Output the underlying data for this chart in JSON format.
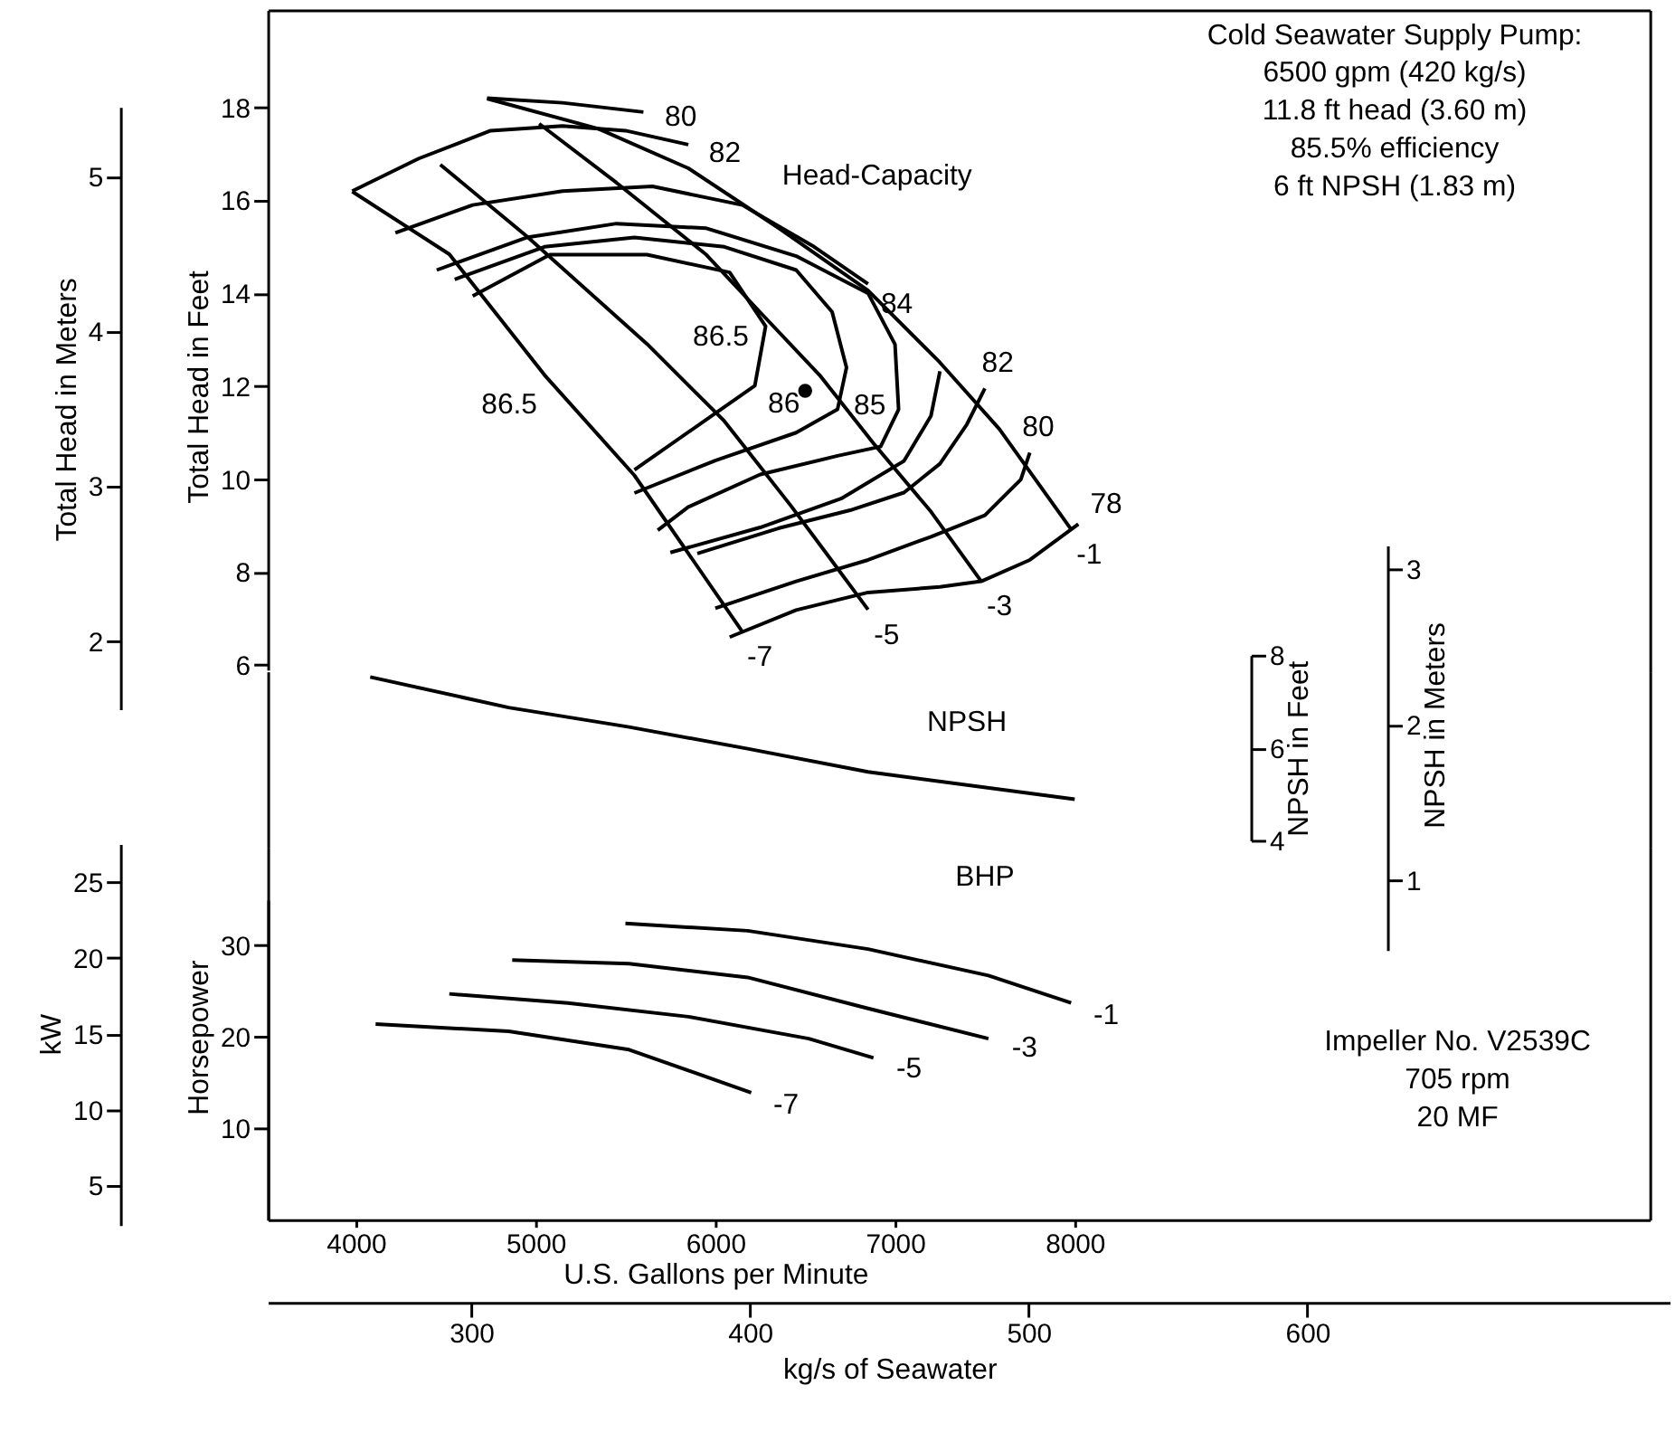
{
  "chart_data": [
    {
      "type": "line",
      "ylabel": "Total Head in Feet",
      "y2label": "Total Head in Meters",
      "xlim": [
        3510,
        11200
      ],
      "tick_labels": "y",
      "ylim": [
        5.9,
        20.1
      ],
      "yticks": [
        6,
        8,
        10,
        12,
        14,
        16,
        18
      ],
      "y2lim": [
        1.56,
        5.45
      ],
      "y2ticks": [
        2,
        3,
        4,
        5
      ],
      "line_style": "solid",
      "series": [
        {
          "color": "#000000",
          "x": [
            4730,
            5350,
            5850,
            6350,
            6850,
            7250,
            7580,
            7980
          ],
          "values": [
            18.19,
            17.54,
            16.69,
            15.41,
            14.06,
            12.51,
            11.08,
            8.92
          ]
        },
        {
          "color": "#000000",
          "x": [
            5020,
            5450,
            5950,
            6250,
            6580,
            6880,
            7200,
            7480
          ],
          "values": [
            17.65,
            16.38,
            14.83,
            13.59,
            12.24,
            10.77,
            9.3,
            7.8
          ]
        },
        {
          "color": "#000000",
          "x": [
            4470,
            4950,
            5620,
            6050,
            6420,
            6620,
            6850
          ],
          "values": [
            16.77,
            15.23,
            12.91,
            11.25,
            9.43,
            8.39,
            7.19
          ]
        },
        {
          "color": "#000000",
          "x": [
            3980,
            4520,
            5050,
            5550,
            6150
          ],
          "values": [
            16.19,
            14.84,
            12.24,
            10.08,
            6.72
          ]
        },
        {
          "color": "#000000",
          "x": [
            4730,
            5150,
            5600
          ],
          "values": [
            18.2,
            18.1,
            17.9
          ]
        },
        {
          "color": "#000000",
          "x": [
            3980,
            4350,
            4750,
            5150,
            5500,
            5850
          ],
          "values": [
            16.2,
            16.9,
            17.5,
            17.6,
            17.5,
            17.2
          ]
        },
        {
          "color": "#000000",
          "x": [
            4220,
            4650,
            5150,
            5650,
            6150,
            6550,
            6850
          ],
          "values": [
            15.3,
            15.9,
            16.2,
            16.3,
            15.9,
            15.0,
            14.2
          ]
        },
        {
          "color": "#000000",
          "x": [
            4450,
            4950,
            5450,
            5950,
            6450,
            6850,
            7000,
            7020,
            6920,
            6680,
            6250,
            5850,
            5680
          ],
          "values": [
            14.5,
            15.2,
            15.5,
            15.4,
            14.8,
            14.0,
            12.9,
            11.5,
            10.7,
            10.5,
            10.1,
            9.4,
            8.9
          ]
        },
        {
          "color": "#000000",
          "x": [
            4550,
            5050,
            5550,
            6050,
            6450,
            6650,
            6730,
            6680,
            6450,
            6000,
            5550
          ],
          "values": [
            14.3,
            15.0,
            15.2,
            15.0,
            14.5,
            13.6,
            12.4,
            11.5,
            11.0,
            10.4,
            9.7
          ]
        },
        {
          "color": "#000000",
          "x": [
            4650,
            5080,
            5620,
            6080,
            6280,
            6220,
            6020,
            5550
          ],
          "values": [
            13.94,
            14.83,
            14.83,
            14.45,
            13.29,
            12.01,
            11.47,
            10.2
          ]
        },
        {
          "color": "#000000",
          "x": [
            5750,
            6250,
            6700,
            7050,
            7200,
            7250
          ],
          "values": [
            8.42,
            8.96,
            9.58,
            10.39,
            11.36,
            12.32
          ]
        },
        {
          "color": "#000000",
          "x": [
            5900,
            6350,
            6750,
            7050,
            7250,
            7400,
            7500
          ],
          "values": [
            8.4,
            8.94,
            9.33,
            9.71,
            10.33,
            11.18,
            11.95
          ]
        },
        {
          "color": "#000000",
          "x": [
            6000,
            6450,
            6850,
            7200,
            7500,
            7700,
            7750
          ],
          "values": [
            7.22,
            7.8,
            8.26,
            8.76,
            9.22,
            9.99,
            10.57
          ]
        },
        {
          "color": "#000000",
          "x": [
            6080,
            6450,
            6850,
            7250,
            7480,
            7750,
            8020
          ],
          "values": [
            6.6,
            7.18,
            7.56,
            7.68,
            7.8,
            8.26,
            9.03
          ]
        },
        {
          "type": "scatter",
          "color": "#000000",
          "marker": "circle",
          "x": [
            6500
          ],
          "values": [
            11.9
          ]
        }
      ],
      "annotations": [
        "Head-Capacity",
        "Cold Seawater Supply Pump:\n6500 gpm (420 kg/s)\n11.8 ft head (3.60 m)\n85.5% efficiency\n6 ft NPSH (1.83 m)",
        {
          "text": "80",
          "x": 5600,
          "y": 17.9
        },
        {
          "text": "82",
          "x": 5850,
          "y": 17.2
        },
        {
          "text": "84",
          "x": 6850,
          "y": 14.2
        },
        {
          "text": "86.5",
          "x": 6280,
          "y": 13.29
        },
        {
          "text": "86.5",
          "x": 5050,
          "y": 12.24
        },
        {
          "text": "86",
          "x": 6450,
          "y": 11.0
        },
        {
          "text": "85",
          "x": 7020,
          "y": 11.5
        },
        {
          "text": "82",
          "x": 7500,
          "y": 11.95
        },
        {
          "text": "80",
          "x": 7750,
          "y": 10.57
        },
        {
          "text": "78",
          "x": 8020,
          "y": 9.03
        },
        {
          "text": "-1",
          "x": 7980,
          "y": 8.92
        },
        {
          "text": "-3",
          "x": 7480,
          "y": 7.8
        },
        {
          "text": "-5",
          "x": 6850,
          "y": 7.19
        },
        {
          "text": "-7",
          "x": 6150,
          "y": 6.72
        }
      ]
    },
    {
      "type": "line",
      "ylabel": "NPSH in Feet",
      "y2label": "NPSH in Meters",
      "xlim": [
        3510,
        11200
      ],
      "tick_labels": "y",
      "ylim": [
        4,
        8
      ],
      "yticks": [
        4,
        6,
        8
      ],
      "y2lim": [
        0.55,
        3.15
      ],
      "y2ticks": [
        1,
        2,
        3
      ],
      "line_style": "solid",
      "series": [
        {
          "color": "#000000",
          "x": [
            4080,
            4850,
            5520,
            6180,
            6850,
            8000
          ],
          "values": [
            7.53,
            6.87,
            6.45,
            5.98,
            5.48,
            4.89
          ]
        }
      ],
      "annotations": [
        "NPSH"
      ]
    },
    {
      "type": "line",
      "ylabel": "Horsepower",
      "y2label": "kW",
      "xlabel": "U.S. Gallons per Minute",
      "x2label": "kg/s of Seawater",
      "xlim": [
        3510,
        11200
      ],
      "xticks": [
        4000,
        5000,
        6000,
        7000,
        8000
      ],
      "x2lim": [
        227,
        730
      ],
      "x2ticks": [
        300,
        400,
        500,
        600
      ],
      "ylim": [
        0,
        35
      ],
      "yticks": [
        10,
        20,
        30
      ],
      "y2lim": [
        2.4,
        27.5
      ],
      "y2ticks": [
        5,
        10,
        15,
        20,
        25
      ],
      "line_style": "solid",
      "series": [
        {
          "color": "#000000",
          "x": [
            5500,
            6180,
            6850,
            7520,
            7980
          ],
          "values": [
            32.4,
            31.6,
            29.6,
            26.7,
            23.7
          ]
        },
        {
          "color": "#000000",
          "x": [
            4870,
            5520,
            6180,
            6850,
            7520
          ],
          "values": [
            28.4,
            28.0,
            26.5,
            23.1,
            19.8
          ]
        },
        {
          "color": "#000000",
          "x": [
            4520,
            5180,
            5850,
            6520,
            6880
          ],
          "values": [
            24.7,
            23.7,
            22.2,
            19.8,
            17.7
          ]
        },
        {
          "color": "#000000",
          "x": [
            4110,
            4850,
            5520,
            6200
          ],
          "values": [
            21.4,
            20.6,
            18.6,
            13.9
          ]
        }
      ],
      "annotations": [
        "BHP",
        "Impeller No. V2539C\n705 rpm\n20 MF",
        {
          "text": "-1",
          "x": 7980,
          "y": 23.7
        },
        {
          "text": "-3",
          "x": 7520,
          "y": 19.8
        },
        {
          "text": "-5",
          "x": 6880,
          "y": 17.7
        },
        {
          "text": "-7",
          "x": 6200,
          "y": 13.9
        }
      ]
    }
  ]
}
